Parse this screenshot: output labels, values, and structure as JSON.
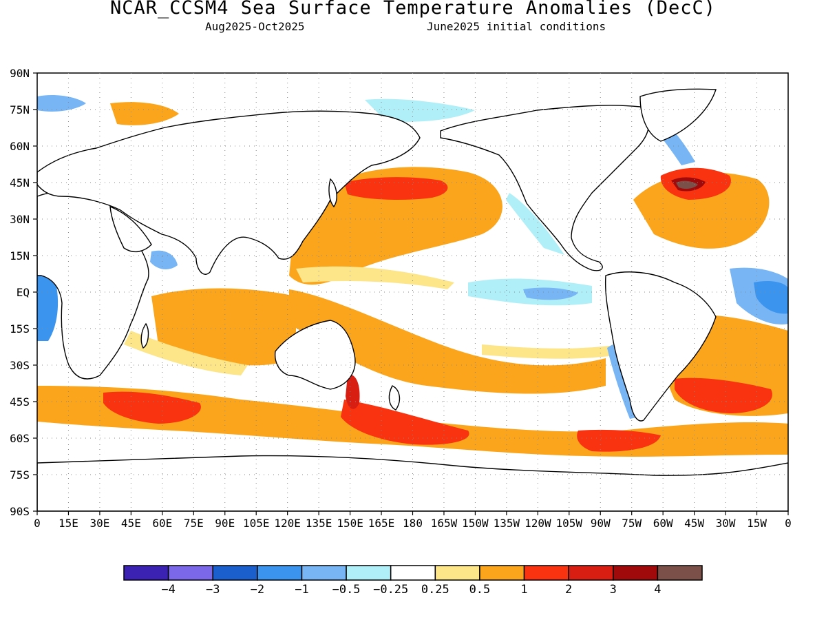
{
  "title": "NCAR_CCSM4 Sea Surface Temperature Anomalies (DecC)",
  "subtitle_left": "Aug2025-Oct2025",
  "subtitle_right": "June2025 initial conditions",
  "lat_labels": [
    "90N",
    "75N",
    "60N",
    "45N",
    "30N",
    "15N",
    "EQ",
    "15S",
    "30S",
    "45S",
    "60S",
    "75S",
    "90S"
  ],
  "lon_labels": [
    "0",
    "15E",
    "30E",
    "45E",
    "60E",
    "75E",
    "90E",
    "105E",
    "120E",
    "135E",
    "150E",
    "165E",
    "180",
    "165W",
    "150W",
    "135W",
    "120W",
    "105W",
    "90W",
    "75W",
    "60W",
    "45W",
    "30W",
    "15W",
    "0"
  ],
  "colorbar": {
    "colors": [
      "#3b22b3",
      "#7a68e8",
      "#1a5fcc",
      "#3b94ee",
      "#78b5f5",
      "#b0eff8",
      "#ffffff",
      "#fde58a",
      "#fba51c",
      "#f9330f",
      "#d81e12",
      "#a10a0a",
      "#7a5048"
    ],
    "labels": [
      "-4",
      "-3",
      "-2",
      "-1",
      "-0.5",
      "-0.25",
      "0.25",
      "0.5",
      "1",
      "2",
      "3",
      "4"
    ]
  }
}
